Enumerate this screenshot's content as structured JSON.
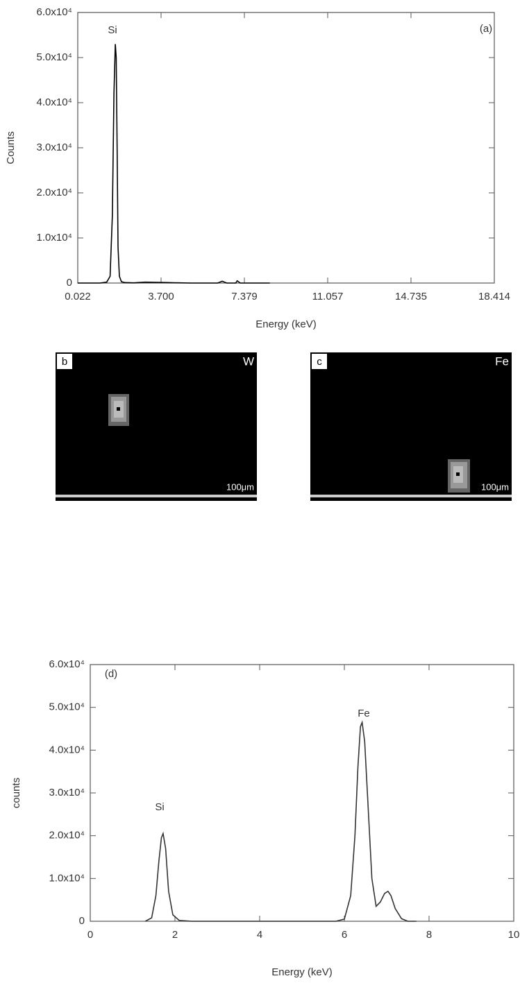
{
  "chart_data": [
    {
      "type": "line",
      "panel_label": "(a)",
      "x_label": "Energy (keV)",
      "y_label": "Counts",
      "annotations": [
        "Si"
      ],
      "x": [
        0.022,
        1.0,
        1.3,
        1.45,
        1.55,
        1.62,
        1.68,
        1.72,
        1.76,
        1.8,
        1.86,
        1.95,
        2.1,
        2.5,
        3.0,
        4.0,
        5.0,
        6.2,
        6.4,
        6.6,
        7.0,
        7.06,
        7.2,
        8.0,
        8.5
      ],
      "values": [
        0,
        0,
        200,
        1500,
        15000,
        42000,
        53000,
        50000,
        30000,
        8000,
        1500,
        300,
        100,
        50,
        200,
        100,
        0,
        0,
        400,
        0,
        0,
        500,
        0,
        0,
        0
      ],
      "color": "#000000",
      "xlim": [
        0.022,
        18.414
      ],
      "xticks": [
        {
          "value": 0.022,
          "label": "0.022"
        },
        {
          "value": 3.7,
          "label": "3.700"
        },
        {
          "value": 7.379,
          "label": "7.379"
        },
        {
          "value": 11.057,
          "label": "11.057"
        },
        {
          "value": 14.735,
          "label": "14.735"
        },
        {
          "value": 18.414,
          "label": "18.414"
        }
      ],
      "ylim": [
        0,
        60000
      ],
      "yticks": [
        0,
        {
          "value": 10000,
          "label": "1.0x10⁴"
        },
        {
          "value": 20000,
          "label": "2.0x10⁴"
        },
        {
          "value": 30000,
          "label": "3.0x10⁴"
        },
        {
          "value": 40000,
          "label": "4.0x10⁴"
        },
        {
          "value": 50000,
          "label": "5.0x10⁴"
        },
        {
          "value": 60000,
          "label": "6.0x10⁴"
        }
      ]
    },
    {
      "type": "line",
      "panel_label": "(d)",
      "x_label": "Energy (keV)",
      "y_label": "counts",
      "annotations": [
        "Si",
        "Fe"
      ],
      "x": [
        1.3,
        1.45,
        1.55,
        1.62,
        1.68,
        1.72,
        1.78,
        1.85,
        1.95,
        2.1,
        2.4,
        5.8,
        6.0,
        6.15,
        6.25,
        6.32,
        6.38,
        6.42,
        6.48,
        6.56,
        6.65,
        6.75,
        6.85,
        6.95,
        7.03,
        7.1,
        7.2,
        7.35,
        7.5,
        7.7
      ],
      "values": [
        0,
        800,
        6000,
        14000,
        19500,
        20500,
        17000,
        7000,
        1500,
        200,
        0,
        0,
        500,
        6000,
        20000,
        36000,
        45500,
        46500,
        42000,
        27000,
        10000,
        3500,
        4500,
        6500,
        7000,
        6000,
        3000,
        600,
        0,
        0
      ],
      "color": "#333333",
      "xlim": [
        0,
        10
      ],
      "xticks": [
        0,
        2,
        4,
        6,
        8,
        10
      ],
      "ylim": [
        0,
        60000
      ],
      "yticks": [
        0,
        {
          "value": 10000,
          "label": "1.0x10⁴"
        },
        {
          "value": 20000,
          "label": "2.0x10⁴"
        },
        {
          "value": 30000,
          "label": "3.0x10⁴"
        },
        {
          "value": 40000,
          "label": "4.0x10⁴"
        },
        {
          "value": 50000,
          "label": "5.0x10⁴"
        },
        {
          "value": 60000,
          "label": "6.0x10⁴"
        }
      ]
    }
  ],
  "panels": [
    {
      "label": "b",
      "element": "W",
      "scale": "100μm"
    },
    {
      "label": "c",
      "element": "Fe",
      "scale": "100μm"
    }
  ]
}
